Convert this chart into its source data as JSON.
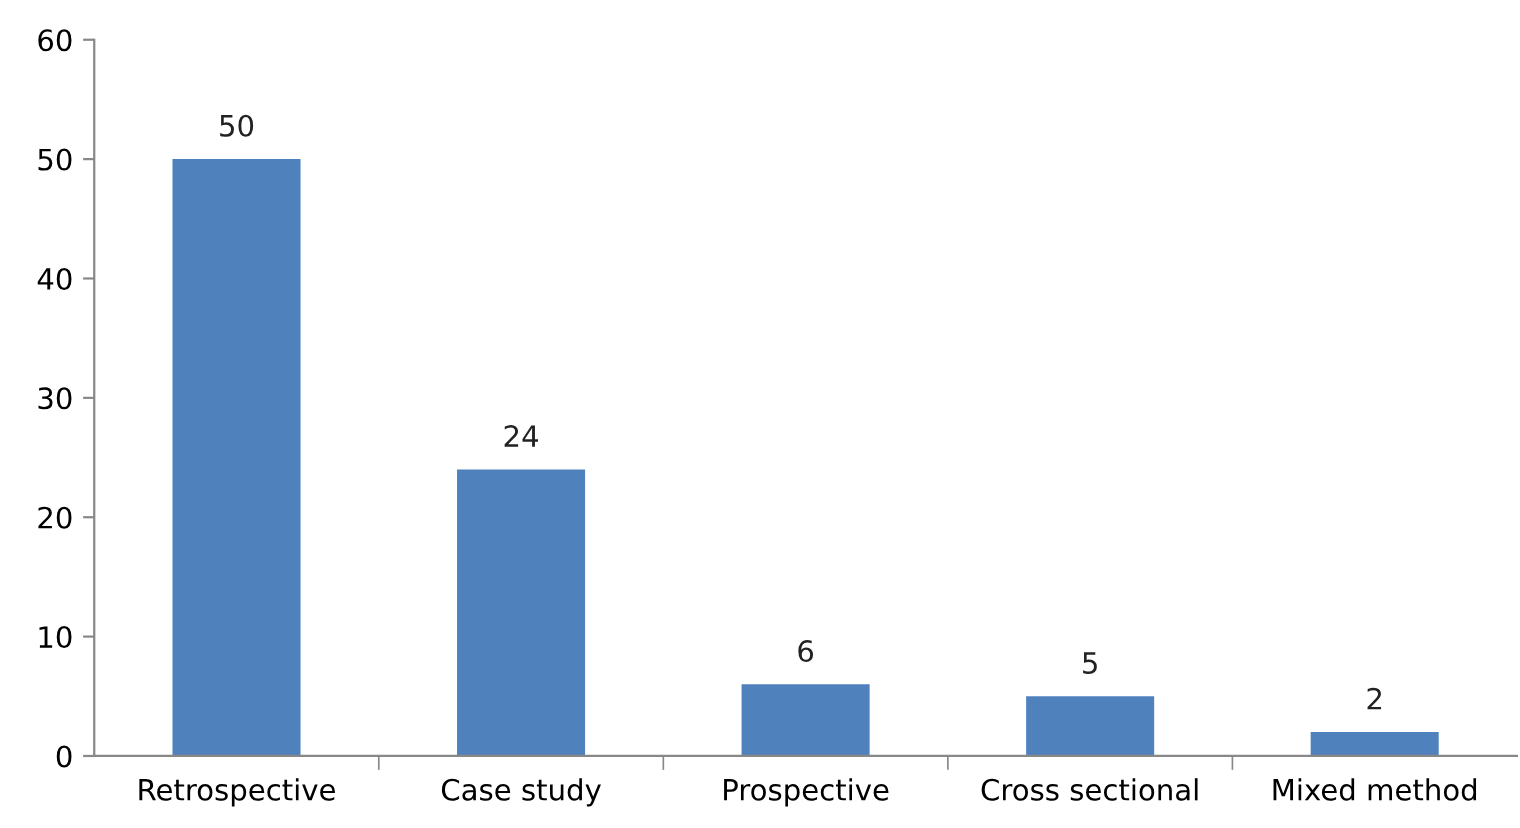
{
  "chart_data": {
    "type": "bar",
    "categories": [
      "Retrospective",
      "Case study",
      "Prospective",
      "Cross sectional",
      "Mixed method"
    ],
    "values": [
      50,
      24,
      6,
      5,
      2
    ],
    "color": "#4f81bd",
    "ylim": [
      0,
      60
    ],
    "yticks": [
      0,
      10,
      20,
      30,
      40,
      50,
      60
    ],
    "data_labels": true,
    "grid": false,
    "legend": false
  }
}
